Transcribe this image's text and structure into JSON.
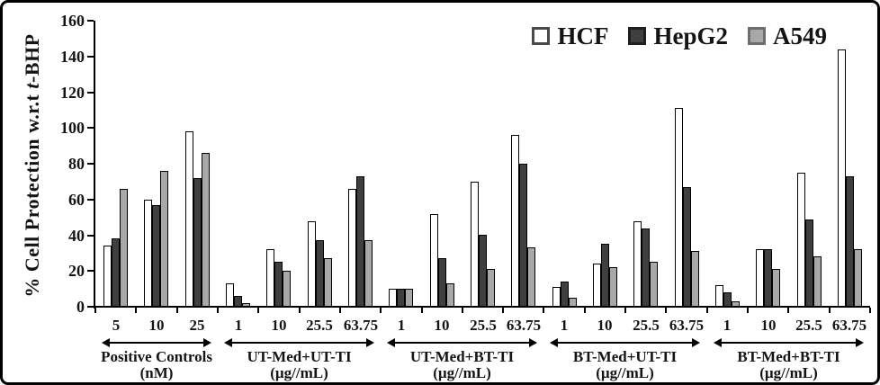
{
  "figure": {
    "background": "#ffffff",
    "frame_color": "#000000",
    "text_color": "#141414"
  },
  "chart_data": {
    "type": "bar",
    "title": "",
    "ylabel": {
      "prefix": "% Cell Protection w.r.t ",
      "italic": "t",
      "suffix": "-BHP"
    },
    "ylabel_full": "% Cell Protection w.r.t t-BHP",
    "ylim": [
      0,
      160
    ],
    "yticks": [
      0,
      20,
      40,
      60,
      80,
      100,
      120,
      140,
      160
    ],
    "grid": false,
    "legend_position": "top-right-inside",
    "bar_border_color": "#000000",
    "series": [
      {
        "name": "HCF",
        "fill": "#ffffff",
        "marker_border": "#4a4a4a"
      },
      {
        "name": "HepG2",
        "fill": "#3f3f3f",
        "marker_border": "#1f1f1f"
      },
      {
        "name": "A549",
        "fill": "#a8a8a8",
        "marker_border": "#6e6e6e"
      }
    ],
    "groups": [
      {
        "label": "Positive Controls",
        "unit_label": "(nM)",
        "categories": [
          "5",
          "10",
          "25"
        ],
        "values": [
          [
            34,
            60,
            98
          ],
          [
            38,
            57,
            72
          ],
          [
            66,
            76,
            86
          ]
        ]
      },
      {
        "label": "UT-Med+UT-TI",
        "unit_label": "(µg//mL)",
        "categories": [
          "1",
          "10",
          "25.5",
          "63.75"
        ],
        "values": [
          [
            13,
            32,
            48,
            66
          ],
          [
            6,
            25,
            37,
            73
          ],
          [
            2,
            20,
            27,
            37
          ]
        ]
      },
      {
        "label": "UT-Med+BT-TI",
        "unit_label": "(µg//mL)",
        "categories": [
          "1",
          "10",
          "25.5",
          "63.75"
        ],
        "values": [
          [
            10,
            52,
            70,
            96
          ],
          [
            10,
            27,
            40,
            80
          ],
          [
            10,
            13,
            21,
            33
          ]
        ]
      },
      {
        "label": "BT-Med+UT-TI",
        "unit_label": "(µg//mL)",
        "categories": [
          "1",
          "10",
          "25.5",
          "63.75"
        ],
        "values": [
          [
            11,
            24,
            48,
            111
          ],
          [
            14,
            35,
            44,
            67
          ],
          [
            5,
            22,
            25,
            31
          ]
        ]
      },
      {
        "label": "BT-Med+BT-TI",
        "unit_label": "(µg//mL)",
        "categories": [
          "1",
          "10",
          "25.5",
          "63.75"
        ],
        "values": [
          [
            12,
            32,
            75,
            144
          ],
          [
            8,
            32,
            49,
            73
          ],
          [
            3,
            21,
            28,
            32
          ]
        ]
      }
    ]
  }
}
